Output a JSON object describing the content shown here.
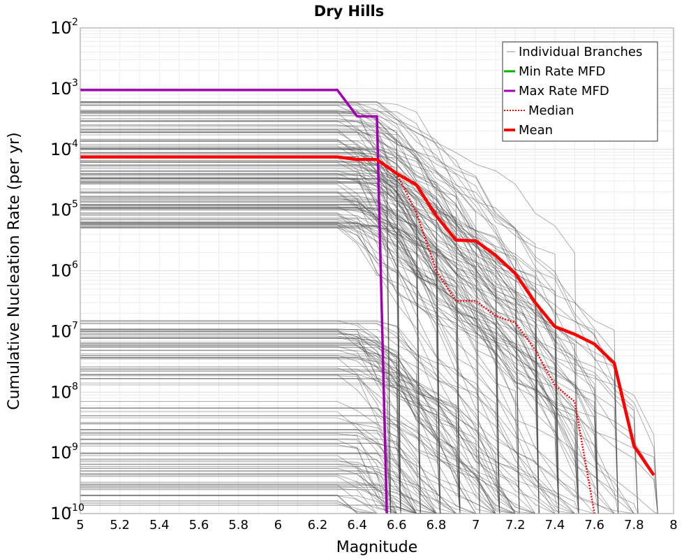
{
  "chart_data": {
    "type": "line",
    "title": "Dry Hills",
    "xlabel": "Magnitude",
    "ylabel": "Cumulative Nucleation Rate (per yr)",
    "xlim": [
      5,
      8
    ],
    "ylim": [
      1e-10,
      0.01
    ],
    "yscale": "log",
    "grid": true,
    "legend_position": "top-right",
    "x_ticks": [
      "5",
      "5.2",
      "5.4",
      "5.6",
      "5.8",
      "6",
      "6.2",
      "6.4",
      "6.6",
      "6.8",
      "7",
      "7.2",
      "7.4",
      "7.6",
      "7.8",
      "8"
    ],
    "y_ticks": [
      {
        "base": "10",
        "exp": "-10"
      },
      {
        "base": "10",
        "exp": "-9"
      },
      {
        "base": "10",
        "exp": "-8"
      },
      {
        "base": "10",
        "exp": "-7"
      },
      {
        "base": "10",
        "exp": "-6"
      },
      {
        "base": "10",
        "exp": "-5"
      },
      {
        "base": "10",
        "exp": "-4"
      },
      {
        "base": "10",
        "exp": "-3"
      },
      {
        "base": "10",
        "exp": "-2"
      }
    ],
    "series": [
      {
        "name": "Individual Branches",
        "color": "#4d4d4d",
        "style": "thin",
        "note_shape": "many branch curves with plateau until ~6.3-6.5 then drop; extents 6.3 to 7.9"
      },
      {
        "name": "Min Rate MFD",
        "color": "#00b000",
        "style": "solid",
        "x": [],
        "y": []
      },
      {
        "name": "Max Rate MFD",
        "color": "#a000b0",
        "style": "solid",
        "x": [
          5.0,
          6.3,
          6.4,
          6.5,
          6.55
        ],
        "y": [
          0.00095,
          0.00095,
          0.00035,
          0.00035,
          1e-10
        ]
      },
      {
        "name": "Median",
        "color": "#ff0000",
        "style": "dotted",
        "x": [
          5.0,
          6.3,
          6.4,
          6.5,
          6.6,
          6.7,
          6.8,
          6.9,
          7.0,
          7.1,
          7.2,
          7.3,
          7.4,
          7.5,
          7.6
        ],
        "y": [
          7.5e-05,
          7.5e-05,
          6.8e-05,
          6.8e-05,
          4e-05,
          9e-06,
          1e-06,
          3.2e-07,
          3.2e-07,
          1.8e-07,
          1.4e-07,
          5e-08,
          1.3e-08,
          7e-09,
          1e-10
        ]
      },
      {
        "name": "Mean",
        "color": "#ff0000",
        "style": "solid",
        "x": [
          5.0,
          6.3,
          6.4,
          6.5,
          6.6,
          6.7,
          6.8,
          6.9,
          7.0,
          7.1,
          7.2,
          7.3,
          7.4,
          7.5,
          7.6,
          7.7,
          7.8,
          7.9
        ],
        "y": [
          7.5e-05,
          7.5e-05,
          6.8e-05,
          6.8e-05,
          4e-05,
          2.6e-05,
          8e-06,
          3.2e-06,
          3.1e-06,
          1.8e-06,
          9e-07,
          3e-07,
          1.2e-07,
          9e-08,
          6.2e-08,
          3e-08,
          1.3e-09,
          4.3e-10
        ]
      }
    ]
  }
}
